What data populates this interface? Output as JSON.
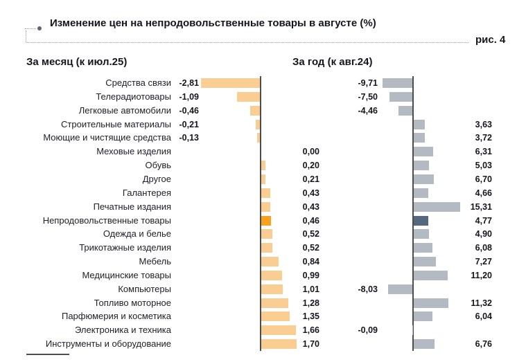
{
  "header": {
    "title": "Изменение цен на непродовольственные товары в августе (%)",
    "figure_label": "рис. 4"
  },
  "panels": {
    "month_header": "За месяц (к июл.25)",
    "year_header": "За год (к авг.24)"
  },
  "colors": {
    "month_bar": "#FACD92",
    "month_highlight": "#F7A21E",
    "year_bar": "#B3BAC1",
    "year_highlight": "#54687E",
    "axis": "#4d4d4d"
  },
  "chart_data": {
    "type": "bar",
    "orientation": "horizontal",
    "unit": "%",
    "title": "Изменение цен на непродовольственные товары в августе (%)",
    "categories": [
      "Средства связи",
      "Телерадиотовары",
      "Легковые автомобили",
      "Строительные материалы",
      "Моющие и чистящие средства",
      "Меховые изделия",
      "Обувь",
      "Другое",
      "Галантерея",
      "Печатные издания",
      "Непродовольственные товары",
      "Одежда и белье",
      "Трикотажные изделия",
      "Мебель",
      "Медицинские товары",
      "Компьютеры",
      "Топливо моторное",
      "Парфюмерия и косметика",
      "Электроника и техника",
      "Инструменты и оборудование"
    ],
    "series": [
      {
        "name": "За месяц (к июл.25)",
        "values": [
          -2.81,
          -1.09,
          -0.46,
          -0.21,
          -0.13,
          0.0,
          0.2,
          0.21,
          0.43,
          0.43,
          0.46,
          0.52,
          0.52,
          0.84,
          0.99,
          1.01,
          1.28,
          1.35,
          1.66,
          1.7
        ],
        "labels": [
          "-2,81",
          "-1,09",
          "-0,46",
          "-0,21",
          "-0,13",
          "0,00",
          "0,20",
          "0,21",
          "0,43",
          "0,43",
          "0,46",
          "0,52",
          "0,52",
          "0,84",
          "0,99",
          "1,01",
          "1,28",
          "1,35",
          "1,66",
          "1,70"
        ]
      },
      {
        "name": "За год (к авг.24)",
        "values": [
          -9.71,
          -7.5,
          -4.46,
          3.63,
          3.72,
          6.31,
          5.03,
          6.7,
          4.66,
          15.31,
          4.77,
          4.9,
          6.08,
          7.27,
          11.2,
          -8.03,
          11.32,
          6.04,
          -0.09,
          6.76
        ],
        "labels": [
          "-9,71",
          "-7,50",
          "-4,46",
          "3,63",
          "3,72",
          "6,31",
          "5,03",
          "6,70",
          "4,66",
          "15,31",
          "4,77",
          "4,90",
          "6,08",
          "7,27",
          "11,20",
          "-8,03",
          "11,32",
          "6,04",
          "-0,09",
          "6,76"
        ]
      }
    ],
    "highlight_category": "Непродовольственные товары",
    "highlight_index": 10,
    "legend_position": "none",
    "grid": false
  }
}
